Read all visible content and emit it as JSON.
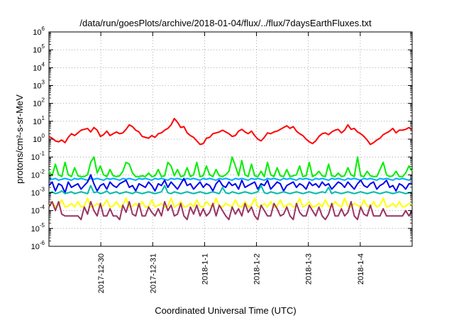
{
  "chart_data": {
    "type": "line",
    "title": "/data/run/goesPlots/archive/2018-01-04/flux/../flux/7daysEarthFluxes.txt",
    "xlabel": "Coordinated Universal Time (UTC)",
    "ylabel": "protons/cm²-s-sr-MeV",
    "y_scale": "log",
    "ylim_exponents": [
      -6,
      6
    ],
    "y_tick_base": "10",
    "y_tick_exponents": [
      "-6",
      "-5",
      "-4",
      "-3",
      "-2",
      "-1",
      "0",
      "1",
      "2",
      "3",
      "4",
      "5",
      "6"
    ],
    "x_ticks": [
      "2017-12-30",
      "2017-12-31",
      "2018-1-1",
      "2018-1-2",
      "2018-1-3",
      "2018-1-4"
    ],
    "x_tick_positions_days": [
      1,
      2,
      3,
      4,
      5,
      6
    ],
    "xlim_days": [
      0,
      7
    ],
    "grid": true,
    "series": [
      {
        "color": "#ff0000",
        "values_log10": [
          0.15,
          0.05,
          -0.1,
          -0.15,
          -0.05,
          -0.2,
          0.1,
          0.3,
          0.2,
          0.35,
          0.5,
          0.55,
          0.6,
          0.4,
          0.65,
          0.5,
          0.15,
          0.25,
          0.45,
          0.2,
          0.3,
          0.4,
          0.3,
          0.35,
          0.55,
          0.8,
          0.7,
          0.5,
          0.4,
          0.15,
          0.1,
          0.05,
          0.2,
          0.1,
          0.3,
          0.35,
          0.5,
          0.6,
          0.8,
          1.15,
          0.95,
          0.65,
          0.7,
          0.35,
          0.2,
          0.1,
          -0.1,
          -0.3,
          -0.25,
          0.05,
          0.1,
          0.3,
          0.35,
          0.4,
          0.5,
          0.4,
          0.3,
          0.15,
          0.2,
          0.45,
          0.55,
          0.4,
          0.3,
          0.45,
          0.2,
          0.0,
          -0.1,
          0.1,
          0.35,
          0.3,
          0.4,
          0.45,
          0.55,
          0.65,
          0.75,
          0.6,
          0.7,
          0.45,
          0.3,
          0.2,
          0.0,
          -0.15,
          -0.25,
          -0.1,
          0.15,
          0.3,
          0.35,
          0.25,
          0.4,
          0.5,
          0.55,
          0.35,
          0.5,
          0.8,
          0.55,
          0.6,
          0.4,
          0.3,
          0.15,
          -0.05,
          -0.3,
          -0.2,
          -0.05,
          0.05,
          0.25,
          0.35,
          0.45,
          0.6,
          0.35,
          0.5,
          0.5,
          0.55,
          0.65,
          0.5
        ]
      },
      {
        "color": "#00ee00",
        "values_log10": [
          -1.8,
          -2.05,
          -1.4,
          -2.0,
          -2.1,
          -1.3,
          -2.0,
          -2.1,
          -1.6,
          -2.05,
          -2.1,
          -2.1,
          -2.0,
          -1.3,
          -1.0,
          -1.9,
          -1.5,
          -2.0,
          -2.1,
          -1.7,
          -2.05,
          -2.1,
          -2.05,
          -1.8,
          -1.3,
          -1.4,
          -1.9,
          -2.1,
          -2.1,
          -2.05,
          -2.1,
          -1.9,
          -2.1,
          -2.05,
          -1.7,
          -2.1,
          -2.05,
          -1.3,
          -1.5,
          -2.05,
          -1.7,
          -2.1,
          -2.05,
          -1.6,
          -2.1,
          -2.0,
          -1.3,
          -2.1,
          -2.05,
          -1.5,
          -2.0,
          -2.1,
          -1.7,
          -2.05,
          -2.1,
          -2.0,
          -1.8,
          -1.0,
          -1.5,
          -2.05,
          -1.2,
          -2.0,
          -2.1,
          -1.4,
          -2.05,
          -2.1,
          -1.8,
          -2.1,
          -1.3,
          -2.0,
          -2.1,
          -1.6,
          -2.05,
          -2.1,
          -1.7,
          -2.1,
          -2.05,
          -2.0,
          -1.5,
          -2.1,
          -2.05,
          -1.3,
          -2.1,
          -2.0,
          -1.8,
          -2.05,
          -2.1,
          -1.4,
          -2.05,
          -2.1,
          -1.9,
          -2.1,
          -2.05,
          -1.6,
          -2.0,
          -2.1,
          -1.0,
          -2.05,
          -2.1,
          -1.8,
          -2.05,
          -2.1,
          -2.1,
          -1.7,
          -1.3,
          -2.0,
          -2.1,
          -2.05,
          -1.8,
          -2.1,
          -2.1,
          -1.9,
          -1.5,
          -1.8
        ]
      },
      {
        "color": "#00aaff",
        "values_log10": [
          -2.2,
          -2.25,
          -2.2,
          -2.3,
          -2.25,
          -2.2,
          -2.25,
          -2.3,
          -2.2,
          -2.25,
          -2.2,
          -2.25,
          -2.3,
          -2.2,
          -2.25,
          -2.2,
          -2.25,
          -2.3,
          -2.2,
          -2.25,
          -2.2,
          -2.25,
          -2.3,
          -2.2,
          -2.25,
          -2.2,
          -2.25,
          -2.3,
          -2.2,
          -2.25,
          -2.2,
          -2.25,
          -2.3,
          -2.2,
          -2.25,
          -2.2,
          -2.25,
          -2.3,
          -2.2,
          -2.25,
          -2.2,
          -2.25,
          -2.3,
          -2.2,
          -2.25,
          -2.2,
          -2.25,
          -2.3,
          -2.2,
          -2.25,
          -2.2,
          -2.25,
          -2.3,
          -2.2,
          -2.25,
          -2.2,
          -2.25,
          -2.3,
          -2.2,
          -2.25,
          -2.2,
          -2.25,
          -2.3,
          -2.2,
          -2.25,
          -2.2,
          -2.25,
          -2.3,
          -2.2,
          -2.25,
          -2.2,
          -2.25,
          -2.3,
          -2.2,
          -2.25,
          -2.2,
          -2.25,
          -2.3,
          -2.2,
          -2.25,
          -2.2,
          -2.25,
          -2.3,
          -2.2,
          -2.25,
          -2.2,
          -2.25,
          -2.3,
          -2.2,
          -2.25,
          -2.2,
          -2.25,
          -2.3,
          -2.2,
          -2.25,
          -2.2,
          -2.25,
          -2.3,
          -2.2,
          -2.25,
          -2.2,
          -2.25,
          -2.3,
          -2.2,
          -2.25,
          -2.2,
          -2.25,
          -2.3,
          -2.2,
          -2.25,
          -2.2,
          -2.25,
          -2.3,
          -2.2
        ]
      },
      {
        "color": "#0000ee",
        "values_log10": [
          -2.6,
          -2.4,
          -2.9,
          -2.5,
          -2.6,
          -3.0,
          -2.4,
          -2.7,
          -2.6,
          -2.5,
          -2.8,
          -2.6,
          -2.4,
          -2.0,
          -2.5,
          -2.9,
          -2.6,
          -2.5,
          -2.8,
          -2.4,
          -2.6,
          -2.7,
          -2.5,
          -2.4,
          -2.3,
          -2.7,
          -2.6,
          -2.9,
          -2.5,
          -2.6,
          -2.7,
          -2.4,
          -2.6,
          -2.9,
          -2.5,
          -2.6,
          -2.3,
          -2.7,
          -2.4,
          -2.6,
          -2.8,
          -2.5,
          -2.2,
          -2.6,
          -2.5,
          -2.8,
          -2.6,
          -2.4,
          -2.7,
          -2.5,
          -2.6,
          -2.9,
          -2.5,
          -2.3,
          -2.6,
          -2.7,
          -2.4,
          -2.6,
          -2.5,
          -2.8,
          -2.3,
          -2.7,
          -2.6,
          -2.5,
          -2.4,
          -2.8,
          -2.5,
          -2.6,
          -2.3,
          -2.8,
          -2.6,
          -2.4,
          -2.5,
          -2.9,
          -2.6,
          -2.5,
          -2.4,
          -2.7,
          -2.5,
          -2.6,
          -2.8,
          -2.4,
          -2.6,
          -2.5,
          -2.7,
          -2.4,
          -2.6,
          -2.5,
          -2.8,
          -2.6,
          -2.4,
          -2.5,
          -2.7,
          -2.4,
          -2.6,
          -2.8,
          -2.5,
          -2.3,
          -2.6,
          -2.7,
          -2.5,
          -2.4,
          -2.8,
          -2.6,
          -2.5,
          -2.3,
          -2.7,
          -2.6,
          -2.9,
          -2.5,
          -2.6,
          -2.8,
          -2.5,
          -2.5
        ]
      },
      {
        "color": "#00bbaa",
        "values_log10": [
          -3.0,
          -2.95,
          -3.05,
          -3.0,
          -2.9,
          -3.05,
          -3.0,
          -2.95,
          -3.05,
          -3.0,
          -2.95,
          -3.0,
          -3.05,
          -2.6,
          -3.0,
          -2.95,
          -3.05,
          -3.0,
          -2.9,
          -3.05,
          -3.0,
          -2.95,
          -3.05,
          -3.0,
          -2.95,
          -3.0,
          -3.05,
          -2.95,
          -3.0,
          -3.05,
          -3.0,
          -2.95,
          -3.0,
          -3.05,
          -3.0,
          -2.95,
          -2.6,
          -3.0,
          -3.05,
          -2.95,
          -3.0,
          -3.05,
          -3.0,
          -2.95,
          -3.0,
          -3.05,
          -3.0,
          -2.95,
          -3.0,
          -3.05,
          -3.0,
          -2.95,
          -3.0,
          -3.05,
          -2.7,
          -3.0,
          -3.05,
          -2.95,
          -3.0,
          -3.05,
          -3.0,
          -2.95,
          -3.0,
          -3.05,
          -3.0,
          -2.95,
          -2.6,
          -3.0,
          -3.05,
          -2.95,
          -3.0,
          -3.05,
          -3.0,
          -2.95,
          -3.0,
          -3.05,
          -3.0,
          -2.95,
          -3.0,
          -3.05,
          -3.0,
          -2.95,
          -3.0,
          -3.05,
          -3.0,
          -2.95,
          -3.0,
          -2.7,
          -3.05,
          -2.95,
          -3.0,
          -3.05,
          -3.0,
          -2.95,
          -3.0,
          -3.05,
          -3.0,
          -2.95,
          -3.0,
          -3.05,
          -3.0,
          -2.95,
          -3.0,
          -3.05,
          -3.0,
          -2.95,
          -3.0,
          -3.05,
          -3.0,
          -2.95,
          -3.0,
          -3.05,
          -3.0,
          -2.95
        ]
      },
      {
        "color": "#ffff00",
        "values_log10": [
          -3.75,
          -3.5,
          -3.8,
          -3.7,
          -3.4,
          -3.8,
          -3.75,
          -3.6,
          -3.8,
          -3.5,
          -3.8,
          -3.75,
          -3.3,
          -3.8,
          -3.75,
          -3.6,
          -3.8,
          -3.7,
          -3.4,
          -3.8,
          -3.75,
          -3.5,
          -3.8,
          -3.7,
          -3.3,
          -3.8,
          -3.75,
          -3.6,
          -3.8,
          -3.5,
          -3.8,
          -3.75,
          -3.4,
          -3.8,
          -3.7,
          -3.6,
          -3.8,
          -3.75,
          -3.3,
          -3.8,
          -3.7,
          -3.5,
          -3.8,
          -3.75,
          -3.6,
          -3.8,
          -3.4,
          -3.75,
          -3.8,
          -3.5,
          -3.7,
          -3.8,
          -3.3,
          -3.75,
          -3.8,
          -3.6,
          -3.7,
          -3.8,
          -3.4,
          -3.75,
          -3.8,
          -3.5,
          -3.8,
          -3.7,
          -3.3,
          -3.8,
          -3.75,
          -3.6,
          -3.8,
          -3.5,
          -3.8,
          -3.75,
          -3.4,
          -3.8,
          -3.7,
          -3.6,
          -3.8,
          -3.75,
          -3.3,
          -3.8,
          -3.7,
          -3.5,
          -3.8,
          -3.75,
          -3.6,
          -3.8,
          -3.4,
          -3.75,
          -3.8,
          -3.5,
          -3.7,
          -3.8,
          -3.3,
          -3.75,
          -3.8,
          -3.6,
          -3.7,
          -3.8,
          -3.4,
          -3.75,
          -3.8,
          -3.5,
          -3.8,
          -3.7,
          -3.3,
          -3.8,
          -3.75,
          -3.6,
          -3.8,
          -3.5,
          -3.8,
          -3.75,
          -3.6,
          -3.7
        ]
      },
      {
        "color": "#993366",
        "values_log10": [
          -3.8,
          -3.5,
          -4.0,
          -3.5,
          -4.2,
          -4.3,
          -4.3,
          -4.3,
          -4.3,
          -4.3,
          -4.5,
          -3.8,
          -4.2,
          -3.5,
          -4.0,
          -4.3,
          -3.6,
          -4.3,
          -4.3,
          -3.9,
          -4.3,
          -4.3,
          -4.5,
          -3.7,
          -4.1,
          -3.5,
          -4.2,
          -4.3,
          -3.6,
          -4.3,
          -4.3,
          -3.8,
          -4.1,
          -4.3,
          -3.9,
          -4.3,
          -3.5,
          -4.0,
          -3.7,
          -4.3,
          -4.2,
          -3.6,
          -4.3,
          -4.5,
          -3.8,
          -4.2,
          -3.7,
          -4.3,
          -3.9,
          -4.3,
          -4.1,
          -3.6,
          -4.3,
          -3.7,
          -4.0,
          -4.3,
          -4.5,
          -3.8,
          -4.2,
          -3.9,
          -4.3,
          -3.6,
          -4.1,
          -3.8,
          -4.3,
          -4.5,
          -3.7,
          -4.0,
          -4.3,
          -4.3,
          -3.6,
          -3.9,
          -4.3,
          -4.2,
          -3.8,
          -4.3,
          -4.5,
          -3.6,
          -4.1,
          -4.3,
          -4.3,
          -3.7,
          -4.0,
          -4.3,
          -3.8,
          -4.3,
          -4.5,
          -4.2,
          -3.6,
          -4.3,
          -4.3,
          -3.9,
          -4.3,
          -4.1,
          -3.5,
          -4.3,
          -4.5,
          -3.8,
          -4.2,
          -4.3,
          -3.7,
          -4.3,
          -4.3,
          -4.3,
          -3.9,
          -4.3,
          -4.3,
          -4.3,
          -4.3,
          -4.3,
          -4.3,
          -4.0,
          -4.3,
          -4.0
        ]
      }
    ]
  }
}
